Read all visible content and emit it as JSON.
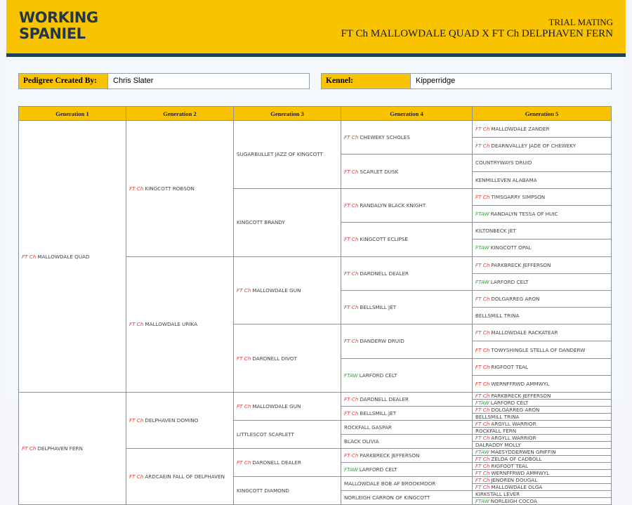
{
  "header": {
    "logo_line1": "WORKING",
    "logo_line2": "SPANIEL",
    "subtitle": "TRIAL MATING",
    "title": "FT Ch MALLOWDALE QUAD X FT Ch DELPHAVEN FERN"
  },
  "info": {
    "created_by_label": "Pedigree Created By:",
    "created_by_value": "Chris Slater",
    "kennel_label": "Kennel:",
    "kennel_value": "Kipperridge"
  },
  "colors": {
    "accent": "#f9c300",
    "dark_bar": "#1d3f55",
    "ft_ch": "#e53935",
    "ftaw": "#3a9a3a"
  },
  "columns": [
    "Generation 1",
    "Generation 2",
    "Generation 3",
    "Generation 4",
    "Generation 5"
  ],
  "generations": [
    [
      {
        "title": "FT Ch",
        "name": "MALLOWDALE QUAD"
      },
      {
        "title": "FT Ch",
        "name": "DELPHAVEN FERN"
      }
    ],
    [
      {
        "title": "FT Ch",
        "name": "KINGCOTT ROBSON"
      },
      {
        "title": "FT Ch",
        "name": "MALLOWDALE URIKA"
      },
      {
        "title": "FT Ch",
        "name": "DELPHAVEN DOMINO"
      },
      {
        "title": "FT Ch",
        "name": "ARDCAEIN FALL OF DELPHAVEN"
      }
    ],
    [
      {
        "title": "",
        "name": "SUGARBULLET JAZZ OF KINGCOTT"
      },
      {
        "title": "",
        "name": "KINGCOTT BRANDY"
      },
      {
        "title": "FT Ch",
        "name": "MALLOWDALE GUN"
      },
      {
        "title": "FT Ch",
        "name": "DARDNELL DIVOT"
      },
      {
        "title": "FT Ch",
        "name": "MALLOWDALE GUN"
      },
      {
        "title": "",
        "name": "LITTLESCOT SCARLETT"
      },
      {
        "title": "FT Ch",
        "name": "DARDNELL DEALER"
      },
      {
        "title": "",
        "name": "KINGCOTT DIAMOND"
      }
    ],
    [
      {
        "title": "FT Ch",
        "name": "CHEWEKY SCHOLES"
      },
      {
        "title": "FT Ch",
        "name": "SCARLET DUSK"
      },
      {
        "title": "FT Ch",
        "name": "RANDALYN BLACK KNIGHT"
      },
      {
        "title": "FT Ch",
        "name": "KINGCOTT ECLIPSE"
      },
      {
        "title": "FT Ch",
        "name": "DARDNELL DEALER"
      },
      {
        "title": "FT Ch",
        "name": "BELLSMILL JET"
      },
      {
        "title": "FT Ch",
        "name": "DANDERW DRUID"
      },
      {
        "title": "FTAW",
        "name": "LARFORD CELT"
      },
      {
        "title": "FT Ch",
        "name": "DARDNELL DEALER"
      },
      {
        "title": "FT Ch",
        "name": "BELLSMILL JET"
      },
      {
        "title": "",
        "name": "ROCKFALL GASPAR"
      },
      {
        "title": "",
        "name": "BLACK OLIVIA"
      },
      {
        "title": "FT Ch",
        "name": "PARKBRECK JEFFERSON"
      },
      {
        "title": "FTAW",
        "name": "LARFORD CELT"
      },
      {
        "title": "",
        "name": "MALLOWDALE BOB AF BROOKMOOR"
      },
      {
        "title": "",
        "name": "NORLEIGH CARRON OF KINGCOTT"
      }
    ],
    [
      {
        "title": "FT Ch",
        "name": "MALLOWDALE ZANDER"
      },
      {
        "title": "FT Ch",
        "name": "DEARNVALLEY JADE OF CHEWEKY"
      },
      {
        "title": "",
        "name": "COUNTRYWAYS DRUID"
      },
      {
        "title": "",
        "name": "KENMILLEVEN ALABAMA"
      },
      {
        "title": "FT Ch",
        "name": "TIMSGARRY SIMPSON"
      },
      {
        "title": "FTAW",
        "name": "RANDALYN TESSA OF HUIC"
      },
      {
        "title": "",
        "name": "KILTONBECK JET"
      },
      {
        "title": "FTAW",
        "name": "KINGCOTT OPAL"
      },
      {
        "title": "FT Ch",
        "name": "PARKBRECK JEFFERSON"
      },
      {
        "title": "FTAW",
        "name": "LARFORD CELT"
      },
      {
        "title": "FT Ch",
        "name": "DOLGARREG ARON"
      },
      {
        "title": "",
        "name": "BELLSMILL TRINA"
      },
      {
        "title": "FT Ch",
        "name": "MALLOWDALE RACKATEAR"
      },
      {
        "title": "FT Ch",
        "name": "TOWYSHINGLE STELLA OF DANDERW"
      },
      {
        "title": "FT Ch",
        "name": "RIGFOOT TEAL"
      },
      {
        "title": "FT Ch",
        "name": "WERNFFRWD AMMWYL"
      },
      {
        "title": "FT Ch",
        "name": "PARKBRECK JEFFERSON"
      },
      {
        "title": "FTAW",
        "name": "LARFORD CELT"
      },
      {
        "title": "FT Ch",
        "name": "DOLGARREG ARON"
      },
      {
        "title": "",
        "name": "BELLSMILL TRINA"
      },
      {
        "title": "FT Ch",
        "name": "ARGYLL WARRIOR"
      },
      {
        "title": "",
        "name": "ROCKFALL FERN"
      },
      {
        "title": "FT Ch",
        "name": "ARGYLL WARRIOR"
      },
      {
        "title": "",
        "name": "DALRADDY MOLLY"
      },
      {
        "title": "FTAW",
        "name": "MAESYDDERWEN GRIFFIN"
      },
      {
        "title": "FT Ch",
        "name": "ZELDA OF CADBOLL"
      },
      {
        "title": "FT Ch",
        "name": "RIGFOOT TEAL"
      },
      {
        "title": "FT Ch",
        "name": "WERNFFRWD AMMWYL"
      },
      {
        "title": "FT Ch",
        "name": "JENOREN DOUGAL"
      },
      {
        "title": "FT Ch",
        "name": "MALLOWDALE OLGA"
      },
      {
        "title": "",
        "name": "KIRKSTALL LEVER"
      },
      {
        "title": "FTAW",
        "name": "NORLEIGH COCOA"
      }
    ]
  ]
}
